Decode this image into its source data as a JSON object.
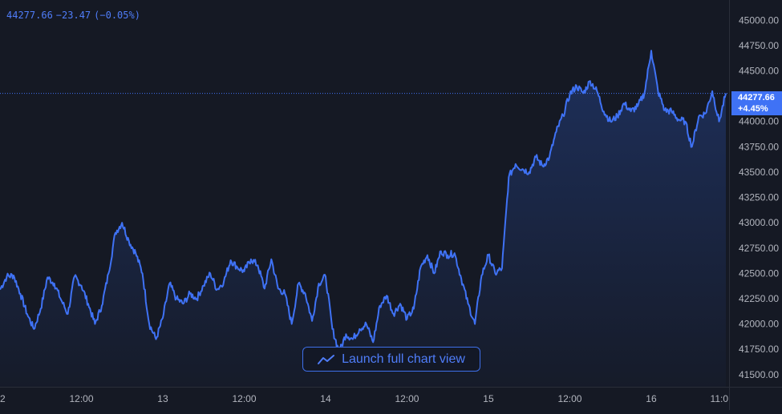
{
  "legend": {
    "last": "44277.66",
    "change": "−23.47",
    "change_pct": "(−0.05%)"
  },
  "price_tag": {
    "value": "44277.66",
    "pct": "+4.45%"
  },
  "launch_button": {
    "label": "Launch full chart view",
    "icon": "line-chart-icon"
  },
  "colors": {
    "background": "#151924",
    "line": "#3f72f5",
    "text": "#b2b5be",
    "accent": "#4f7df9"
  },
  "chart_data": {
    "type": "area",
    "title": "",
    "xlabel": "",
    "ylabel": "",
    "ylim": [
      41380,
      45200
    ],
    "y_ticks": [
      41500,
      41750,
      42000,
      42250,
      42500,
      42750,
      43000,
      43250,
      43500,
      43750,
      44000,
      44250,
      44500,
      44750,
      45000
    ],
    "y_tick_labels": [
      "41500.00",
      "41750.00",
      "42000.00",
      "42250.00",
      "42500.00",
      "42750.00",
      "43000.00",
      "43250.00",
      "43500.00",
      "43750.00",
      "44000.00",
      "44250.00",
      "44500.00",
      "44750.00",
      "45000.00"
    ],
    "x_tick_labels": [
      "2",
      "12:00",
      "13",
      "12:00",
      "14",
      "12:00",
      "15",
      "12:00",
      "16",
      "11:0"
    ],
    "x_tick_hours": [
      0,
      12,
      24,
      36,
      48,
      60,
      72,
      84,
      96,
      107
    ],
    "last_value": 44277.66,
    "series": [
      {
        "x": [
          0,
          1,
          2,
          3,
          4,
          5,
          6,
          7,
          8,
          9,
          10,
          11,
          12,
          13,
          14,
          15,
          16,
          17,
          18,
          19,
          20,
          21,
          22,
          23,
          24,
          25,
          26,
          27,
          28,
          29,
          30,
          31,
          32,
          33,
          34,
          35,
          36,
          37,
          38,
          39,
          40,
          41,
          42,
          43,
          44,
          45,
          46,
          47,
          48,
          49,
          50,
          51,
          52,
          53,
          54,
          55,
          56,
          57,
          58,
          59,
          60,
          61,
          62,
          63,
          64,
          65,
          66,
          67,
          68,
          69,
          70,
          71,
          72,
          73,
          74,
          75,
          76,
          77,
          78,
          79,
          80,
          81,
          82,
          83,
          84,
          85,
          86,
          87,
          88,
          89,
          90,
          91,
          92,
          93,
          94,
          95,
          96,
          97,
          98,
          99,
          100,
          101,
          102,
          103,
          104,
          105,
          106,
          107
        ],
        "values": [
          42340,
          42470,
          42480,
          42300,
          42100,
          41950,
          42150,
          42460,
          42400,
          42240,
          42100,
          42470,
          42380,
          42200,
          42000,
          42180,
          42500,
          42900,
          43000,
          42820,
          42700,
          42500,
          42000,
          41850,
          42060,
          42400,
          42250,
          42200,
          42300,
          42250,
          42380,
          42500,
          42340,
          42420,
          42630,
          42560,
          42520,
          42640,
          42580,
          42350,
          42640,
          42350,
          42300,
          42000,
          42400,
          42300,
          42030,
          42400,
          42470,
          41950,
          41720,
          41900,
          41850,
          41950,
          42000,
          41820,
          42180,
          42280,
          42100,
          42200,
          42050,
          42150,
          42560,
          42680,
          42500,
          42720,
          42680,
          42700,
          42450,
          42200,
          42000,
          42480,
          42680,
          42500,
          42550,
          43450,
          43580,
          43530,
          43500,
          43650,
          43560,
          43650,
          43900,
          44060,
          44270,
          44350,
          44280,
          44400,
          44300,
          44100,
          44000,
          44050,
          44180,
          44100,
          44150,
          44280,
          44700,
          44300,
          44110,
          44100,
          44020,
          44000,
          43750,
          44050,
          44080,
          44300,
          44000,
          44278
        ]
      }
    ]
  }
}
